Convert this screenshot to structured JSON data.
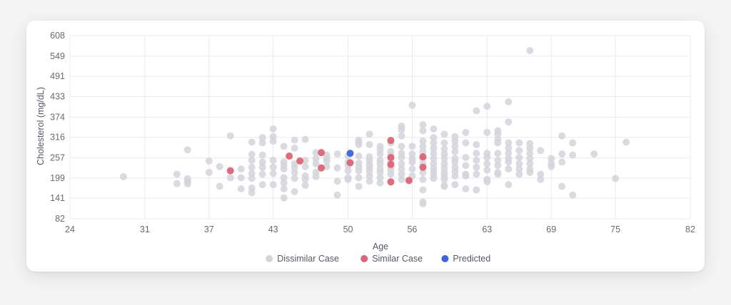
{
  "chart_data": {
    "type": "scatter",
    "title": "",
    "xlabel": "Age",
    "ylabel": "Cholesterol (mg/dL)",
    "xlim": [
      24,
      82
    ],
    "ylim": [
      82,
      608
    ],
    "x_ticks": [
      24,
      31,
      37,
      43,
      50,
      56,
      63,
      69,
      75,
      82
    ],
    "y_ticks": [
      82,
      141,
      199,
      257,
      316,
      374,
      433,
      491,
      549,
      608
    ],
    "grid": true,
    "legend_position": "bottom",
    "series": [
      {
        "name": "Dissimilar Case",
        "color": "#d4d5da",
        "points": [
          [
            29,
            203
          ],
          [
            34,
            210
          ],
          [
            34,
            183
          ],
          [
            35,
            280
          ],
          [
            35,
            197
          ],
          [
            35,
            189
          ],
          [
            35,
            182
          ],
          [
            37,
            248
          ],
          [
            37,
            215
          ],
          [
            38,
            232
          ],
          [
            38,
            175
          ],
          [
            39,
            320
          ],
          [
            39,
            200
          ],
          [
            40,
            225
          ],
          [
            40,
            200
          ],
          [
            40,
            168
          ],
          [
            41,
            302
          ],
          [
            41,
            267
          ],
          [
            41,
            250
          ],
          [
            41,
            230
          ],
          [
            41,
            212
          ],
          [
            41,
            198
          ],
          [
            41,
            170
          ],
          [
            41,
            157
          ],
          [
            42,
            315
          ],
          [
            42,
            300
          ],
          [
            42,
            265
          ],
          [
            42,
            245
          ],
          [
            42,
            230
          ],
          [
            42,
            210
          ],
          [
            42,
            180
          ],
          [
            43,
            340
          ],
          [
            43,
            318
          ],
          [
            43,
            305
          ],
          [
            43,
            250
          ],
          [
            43,
            230
          ],
          [
            43,
            212
          ],
          [
            43,
            180
          ],
          [
            44,
            290
          ],
          [
            44,
            245
          ],
          [
            44,
            235
          ],
          [
            44,
            225
          ],
          [
            44,
            200
          ],
          [
            44,
            185
          ],
          [
            44,
            168
          ],
          [
            44,
            142
          ],
          [
            45,
            308
          ],
          [
            45,
            285
          ],
          [
            45,
            240
          ],
          [
            45,
            230
          ],
          [
            45,
            215
          ],
          [
            45,
            198
          ],
          [
            45,
            160
          ],
          [
            46,
            310
          ],
          [
            46,
            250
          ],
          [
            46,
            232
          ],
          [
            46,
            205
          ],
          [
            46,
            195
          ],
          [
            46,
            178
          ],
          [
            47,
            272
          ],
          [
            47,
            255
          ],
          [
            47,
            240
          ],
          [
            47,
            215
          ],
          [
            47,
            203
          ],
          [
            48,
            265
          ],
          [
            48,
            255
          ],
          [
            48,
            248
          ],
          [
            48,
            232
          ],
          [
            49,
            268
          ],
          [
            49,
            228
          ],
          [
            49,
            190
          ],
          [
            49,
            150
          ],
          [
            50,
            262
          ],
          [
            50,
            245
          ],
          [
            50,
            235
          ],
          [
            50,
            220
          ],
          [
            50,
            200
          ],
          [
            50,
            195
          ],
          [
            51,
            308
          ],
          [
            51,
            302
          ],
          [
            51,
            295
          ],
          [
            51,
            262
          ],
          [
            51,
            242
          ],
          [
            51,
            230
          ],
          [
            51,
            220
          ],
          [
            51,
            200
          ],
          [
            51,
            175
          ],
          [
            52,
            325
          ],
          [
            52,
            295
          ],
          [
            52,
            260
          ],
          [
            52,
            250
          ],
          [
            52,
            238
          ],
          [
            52,
            228
          ],
          [
            52,
            218
          ],
          [
            52,
            205
          ],
          [
            52,
            190
          ],
          [
            53,
            290
          ],
          [
            53,
            280
          ],
          [
            53,
            268
          ],
          [
            53,
            250
          ],
          [
            53,
            240
          ],
          [
            53,
            225
          ],
          [
            53,
            215
          ],
          [
            53,
            200
          ],
          [
            53,
            185
          ],
          [
            54,
            300
          ],
          [
            54,
            275
          ],
          [
            54,
            265
          ],
          [
            54,
            248
          ],
          [
            54,
            232
          ],
          [
            54,
            222
          ],
          [
            54,
            210
          ],
          [
            55,
            348
          ],
          [
            55,
            338
          ],
          [
            55,
            320
          ],
          [
            55,
            290
          ],
          [
            55,
            270
          ],
          [
            55,
            258
          ],
          [
            55,
            240
          ],
          [
            55,
            225
          ],
          [
            55,
            210
          ],
          [
            55,
            195
          ],
          [
            56,
            408
          ],
          [
            56,
            290
          ],
          [
            56,
            268
          ],
          [
            56,
            255
          ],
          [
            56,
            245
          ],
          [
            56,
            225
          ],
          [
            56,
            205
          ],
          [
            57,
            352
          ],
          [
            57,
            335
          ],
          [
            57,
            305
          ],
          [
            57,
            290
          ],
          [
            57,
            275
          ],
          [
            57,
            255
          ],
          [
            57,
            240
          ],
          [
            57,
            215
          ],
          [
            57,
            195
          ],
          [
            57,
            165
          ],
          [
            57,
            130
          ],
          [
            57,
            125
          ],
          [
            58,
            340
          ],
          [
            58,
            315
          ],
          [
            58,
            300
          ],
          [
            58,
            285
          ],
          [
            58,
            270
          ],
          [
            58,
            255
          ],
          [
            58,
            240
          ],
          [
            58,
            228
          ],
          [
            58,
            218
          ],
          [
            58,
            208
          ],
          [
            58,
            198
          ],
          [
            59,
            325
          ],
          [
            59,
            300
          ],
          [
            59,
            282
          ],
          [
            59,
            268
          ],
          [
            59,
            255
          ],
          [
            59,
            240
          ],
          [
            59,
            228
          ],
          [
            59,
            215
          ],
          [
            59,
            205
          ],
          [
            59,
            195
          ],
          [
            59,
            178
          ],
          [
            59,
            175
          ],
          [
            60,
            318
          ],
          [
            60,
            305
          ],
          [
            60,
            290
          ],
          [
            60,
            275
          ],
          [
            60,
            255
          ],
          [
            60,
            245
          ],
          [
            60,
            230
          ],
          [
            60,
            218
          ],
          [
            60,
            205
          ],
          [
            60,
            180
          ],
          [
            61,
            330
          ],
          [
            61,
            300
          ],
          [
            61,
            258
          ],
          [
            61,
            235
          ],
          [
            61,
            210
          ],
          [
            61,
            205
          ],
          [
            61,
            168
          ],
          [
            62,
            392
          ],
          [
            62,
            295
          ],
          [
            62,
            270
          ],
          [
            62,
            250
          ],
          [
            62,
            230
          ],
          [
            62,
            210
          ],
          [
            62,
            165
          ],
          [
            63,
            405
          ],
          [
            63,
            330
          ],
          [
            63,
            270
          ],
          [
            63,
            258
          ],
          [
            63,
            240
          ],
          [
            63,
            222
          ],
          [
            63,
            195
          ],
          [
            63,
            188
          ],
          [
            64,
            335
          ],
          [
            64,
            325
          ],
          [
            64,
            310
          ],
          [
            64,
            300
          ],
          [
            64,
            270
          ],
          [
            64,
            250
          ],
          [
            64,
            235
          ],
          [
            64,
            215
          ],
          [
            64,
            210
          ],
          [
            65,
            418
          ],
          [
            65,
            360
          ],
          [
            65,
            300
          ],
          [
            65,
            285
          ],
          [
            65,
            270
          ],
          [
            65,
            255
          ],
          [
            65,
            245
          ],
          [
            65,
            225
          ],
          [
            65,
            180
          ],
          [
            66,
            300
          ],
          [
            66,
            278
          ],
          [
            66,
            258
          ],
          [
            66,
            240
          ],
          [
            66,
            225
          ],
          [
            66,
            210
          ],
          [
            67,
            565
          ],
          [
            67,
            298
          ],
          [
            67,
            285
          ],
          [
            67,
            270
          ],
          [
            67,
            255
          ],
          [
            67,
            240
          ],
          [
            67,
            225
          ],
          [
            67,
            215
          ],
          [
            68,
            278
          ],
          [
            68,
            210
          ],
          [
            68,
            195
          ],
          [
            69,
            255
          ],
          [
            69,
            240
          ],
          [
            69,
            232
          ],
          [
            70,
            320
          ],
          [
            70,
            268
          ],
          [
            70,
            245
          ],
          [
            70,
            175
          ],
          [
            71,
            300
          ],
          [
            71,
            265
          ],
          [
            71,
            150
          ],
          [
            73,
            268
          ],
          [
            75,
            198
          ],
          [
            76,
            302
          ]
        ]
      },
      {
        "name": "Similar Case",
        "color": "#dd6474",
        "points": [
          [
            39,
            220
          ],
          [
            44.5,
            262
          ],
          [
            45.5,
            248
          ],
          [
            47.5,
            272
          ],
          [
            47.5,
            228
          ],
          [
            50.2,
            243
          ],
          [
            54,
            307
          ],
          [
            54,
            258
          ],
          [
            54,
            238
          ],
          [
            54,
            188
          ],
          [
            55.7,
            192
          ],
          [
            57,
            260
          ],
          [
            57,
            230
          ]
        ]
      },
      {
        "name": "Predicted",
        "color": "#3e63dd",
        "points": [
          [
            50.2,
            270
          ]
        ]
      }
    ]
  }
}
